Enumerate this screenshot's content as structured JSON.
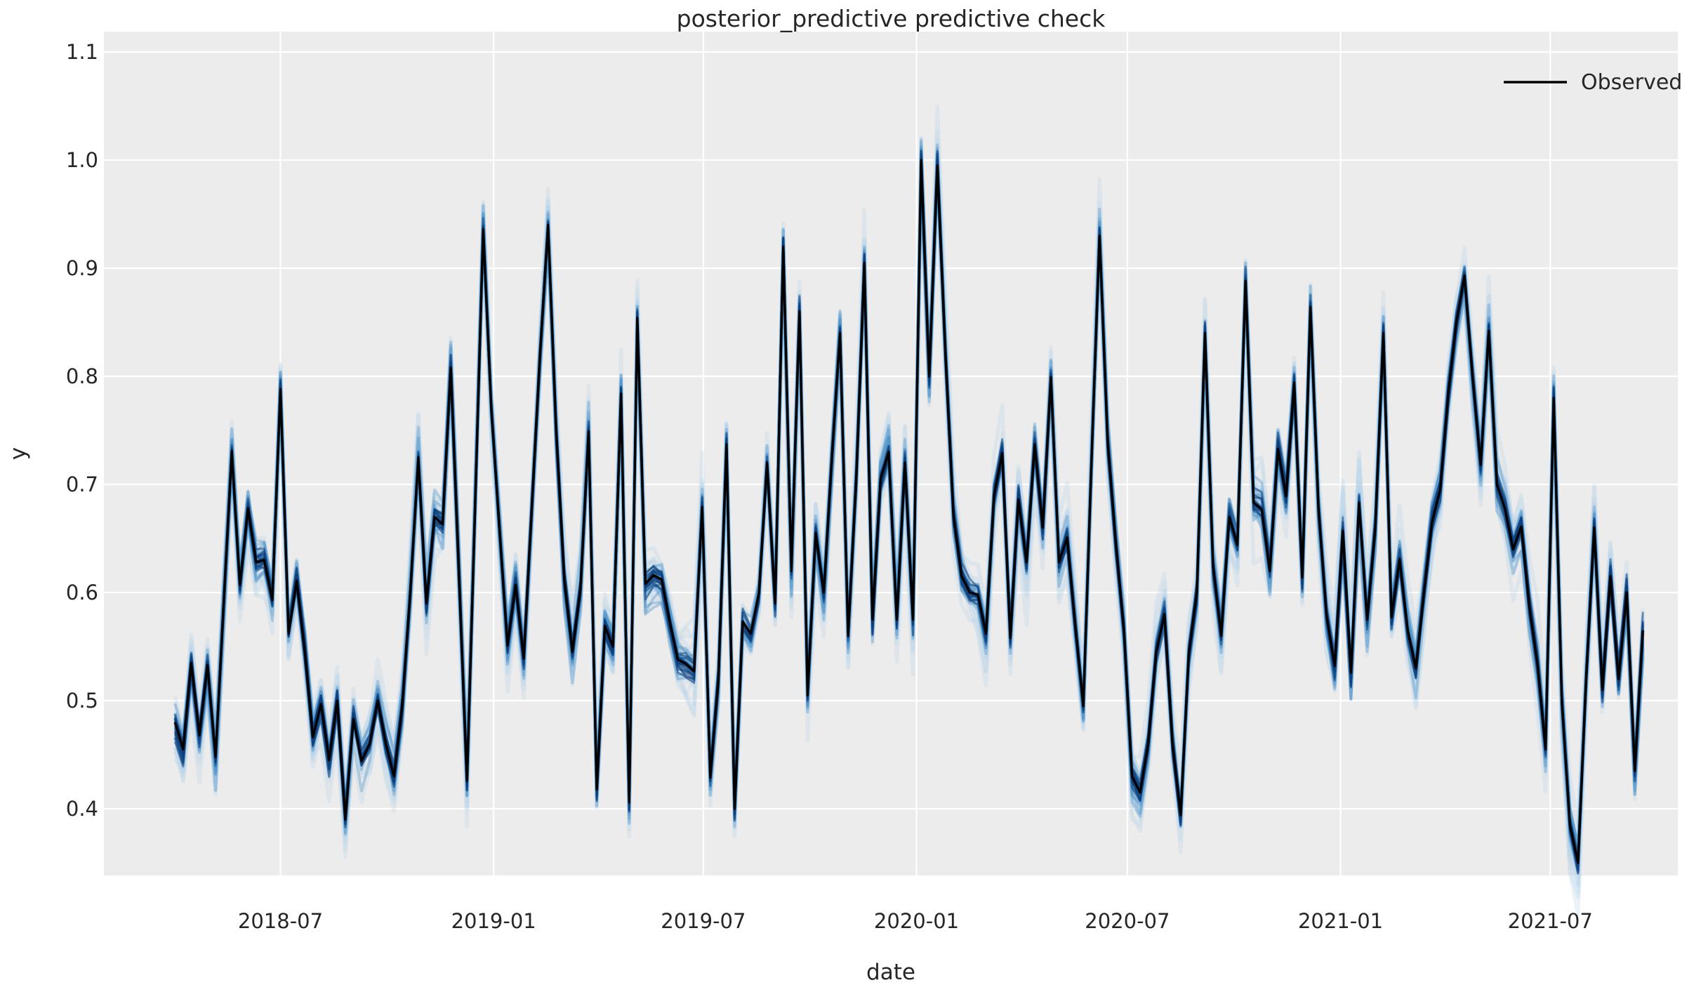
{
  "figure": {
    "title": "posterior_predictive predictive check",
    "background": "#ffffff",
    "plot_background": "#ececec",
    "grid_color": "#ffffff",
    "text_color": "#262626",
    "tick_color": "#262626"
  },
  "legend": {
    "label": "Observed",
    "line_color": "#000000"
  },
  "chart_data": {
    "type": "line",
    "title": "posterior_predictive predictive check",
    "xlabel": "date",
    "ylabel": "y",
    "grid": true,
    "legend_position": "upper right",
    "x_ticks": [
      "2018-07",
      "2019-01",
      "2019-07",
      "2020-01",
      "2020-07",
      "2021-01",
      "2021-07"
    ],
    "y_ticks": [
      0.4,
      0.5,
      0.6,
      0.7,
      0.8,
      0.9,
      1.0,
      1.1
    ],
    "ylim": [
      0.338,
      1.119
    ],
    "xlim": [
      "2018-01-29",
      "2021-10-21"
    ],
    "band": {
      "name": "posterior_predictive samples",
      "n_samples": 51,
      "layer_colors": [
        "#b8d4ea",
        "#4f93c8",
        "#0d3f7c"
      ],
      "layer_alphas": [
        0.28,
        0.38,
        0.55
      ],
      "layer_amplitudes": [
        0.052,
        0.032,
        0.016
      ],
      "layer_widths": [
        5.5,
        4.0,
        2.8
      ]
    },
    "series": [
      {
        "name": "Observed",
        "color": "#000000",
        "dates": [
          "2018-04-01",
          "2018-04-08",
          "2018-04-15",
          "2018-04-22",
          "2018-04-29",
          "2018-05-06",
          "2018-05-13",
          "2018-05-20",
          "2018-05-27",
          "2018-06-03",
          "2018-06-10",
          "2018-06-17",
          "2018-06-24",
          "2018-07-01",
          "2018-07-08",
          "2018-07-15",
          "2018-07-22",
          "2018-07-29",
          "2018-08-05",
          "2018-08-12",
          "2018-08-19",
          "2018-08-26",
          "2018-09-02",
          "2018-09-09",
          "2018-09-16",
          "2018-09-23",
          "2018-09-30",
          "2018-10-07",
          "2018-10-14",
          "2018-10-21",
          "2018-10-28",
          "2018-11-04",
          "2018-11-11",
          "2018-11-18",
          "2018-11-25",
          "2018-12-02",
          "2018-12-09",
          "2018-12-16",
          "2018-12-23",
          "2018-12-30",
          "2019-01-06",
          "2019-01-13",
          "2019-01-20",
          "2019-01-27",
          "2019-02-03",
          "2019-02-10",
          "2019-02-17",
          "2019-02-24",
          "2019-03-03",
          "2019-03-10",
          "2019-03-17",
          "2019-03-24",
          "2019-03-31",
          "2019-04-07",
          "2019-04-14",
          "2019-04-21",
          "2019-04-28",
          "2019-05-05",
          "2019-05-12",
          "2019-05-19",
          "2019-05-26",
          "2019-06-02",
          "2019-06-09",
          "2019-06-16",
          "2019-06-23",
          "2019-06-30",
          "2019-07-07",
          "2019-07-14",
          "2019-07-21",
          "2019-07-28",
          "2019-08-04",
          "2019-08-11",
          "2019-08-18",
          "2019-08-25",
          "2019-09-01",
          "2019-09-08",
          "2019-09-15",
          "2019-09-22",
          "2019-09-29",
          "2019-10-06",
          "2019-10-13",
          "2019-10-20",
          "2019-10-27",
          "2019-11-03",
          "2019-11-10",
          "2019-11-17",
          "2019-11-24",
          "2019-12-01",
          "2019-12-08",
          "2019-12-15",
          "2019-12-22",
          "2019-12-29",
          "2020-01-05",
          "2020-01-12",
          "2020-01-19",
          "2020-01-26",
          "2020-02-02",
          "2020-02-09",
          "2020-02-16",
          "2020-02-23",
          "2020-03-01",
          "2020-03-08",
          "2020-03-15",
          "2020-03-22",
          "2020-03-29",
          "2020-04-05",
          "2020-04-12",
          "2020-04-19",
          "2020-04-26",
          "2020-05-03",
          "2020-05-10",
          "2020-05-17",
          "2020-05-24",
          "2020-05-31",
          "2020-06-07",
          "2020-06-14",
          "2020-06-21",
          "2020-06-28",
          "2020-07-05",
          "2020-07-12",
          "2020-07-19",
          "2020-07-26",
          "2020-08-02",
          "2020-08-09",
          "2020-08-16",
          "2020-08-23",
          "2020-08-30",
          "2020-09-06",
          "2020-09-13",
          "2020-09-20",
          "2020-09-27",
          "2020-10-04",
          "2020-10-11",
          "2020-10-18",
          "2020-10-25",
          "2020-11-01",
          "2020-11-08",
          "2020-11-15",
          "2020-11-22",
          "2020-11-29",
          "2020-12-06",
          "2020-12-13",
          "2020-12-20",
          "2020-12-27",
          "2021-01-03",
          "2021-01-10",
          "2021-01-17",
          "2021-01-24",
          "2021-01-31",
          "2021-02-07",
          "2021-02-14",
          "2021-02-21",
          "2021-02-28",
          "2021-03-07",
          "2021-03-14",
          "2021-03-21",
          "2021-03-28",
          "2021-04-04",
          "2021-04-11",
          "2021-04-18",
          "2021-04-25",
          "2021-05-02",
          "2021-05-09",
          "2021-05-16",
          "2021-05-23",
          "2021-05-30",
          "2021-06-06",
          "2021-06-13",
          "2021-06-20",
          "2021-06-27",
          "2021-07-04",
          "2021-07-11",
          "2021-07-18",
          "2021-07-25",
          "2021-08-01",
          "2021-08-08",
          "2021-08-15",
          "2021-08-22",
          "2021-08-29",
          "2021-09-05",
          "2021-09-12",
          "2021-09-19"
        ],
        "values": [
          0.48,
          0.455,
          0.535,
          0.468,
          0.533,
          0.448,
          0.59,
          0.731,
          0.607,
          0.678,
          0.628,
          0.63,
          0.593,
          0.788,
          0.562,
          0.611,
          0.546,
          0.466,
          0.497,
          0.445,
          0.5,
          0.39,
          0.483,
          0.444,
          0.46,
          0.5,
          0.46,
          0.43,
          0.494,
          0.6,
          0.725,
          0.59,
          0.67,
          0.663,
          0.808,
          0.62,
          0.426,
          0.68,
          0.936,
          0.77,
          0.66,
          0.551,
          0.607,
          0.539,
          0.68,
          0.82,
          0.94,
          0.75,
          0.612,
          0.545,
          0.604,
          0.749,
          0.418,
          0.569,
          0.55,
          0.784,
          0.406,
          0.854,
          0.608,
          0.616,
          0.612,
          0.573,
          0.538,
          0.534,
          0.527,
          0.679,
          0.429,
          0.519,
          0.737,
          0.4,
          0.573,
          0.562,
          0.6,
          0.72,
          0.59,
          0.92,
          0.62,
          0.86,
          0.505,
          0.655,
          0.6,
          0.725,
          0.84,
          0.56,
          0.705,
          0.905,
          0.575,
          0.705,
          0.73,
          0.575,
          0.72,
          0.575,
          1.0,
          0.8,
          0.995,
          0.82,
          0.67,
          0.615,
          0.6,
          0.598,
          0.562,
          0.69,
          0.729,
          0.558,
          0.686,
          0.628,
          0.737,
          0.66,
          0.799,
          0.628,
          0.651,
          0.57,
          0.495,
          0.72,
          0.93,
          0.74,
          0.646,
          0.566,
          0.43,
          0.415,
          0.46,
          0.545,
          0.58,
          0.46,
          0.394,
          0.543,
          0.6,
          0.84,
          0.624,
          0.56,
          0.67,
          0.644,
          0.888,
          0.683,
          0.677,
          0.62,
          0.733,
          0.689,
          0.794,
          0.614,
          0.864,
          0.677,
          0.578,
          0.532,
          0.657,
          0.526,
          0.683,
          0.575,
          0.66,
          0.84,
          0.577,
          0.631,
          0.565,
          0.53,
          0.6,
          0.665,
          0.695,
          0.784,
          0.85,
          0.893,
          0.8,
          0.718,
          0.842,
          0.7,
          0.677,
          0.64,
          0.661,
          0.587,
          0.534,
          0.455,
          0.78,
          0.5,
          0.385,
          0.35,
          0.52,
          0.66,
          0.51,
          0.615,
          0.52,
          0.6,
          0.435,
          0.565
        ]
      }
    ]
  }
}
